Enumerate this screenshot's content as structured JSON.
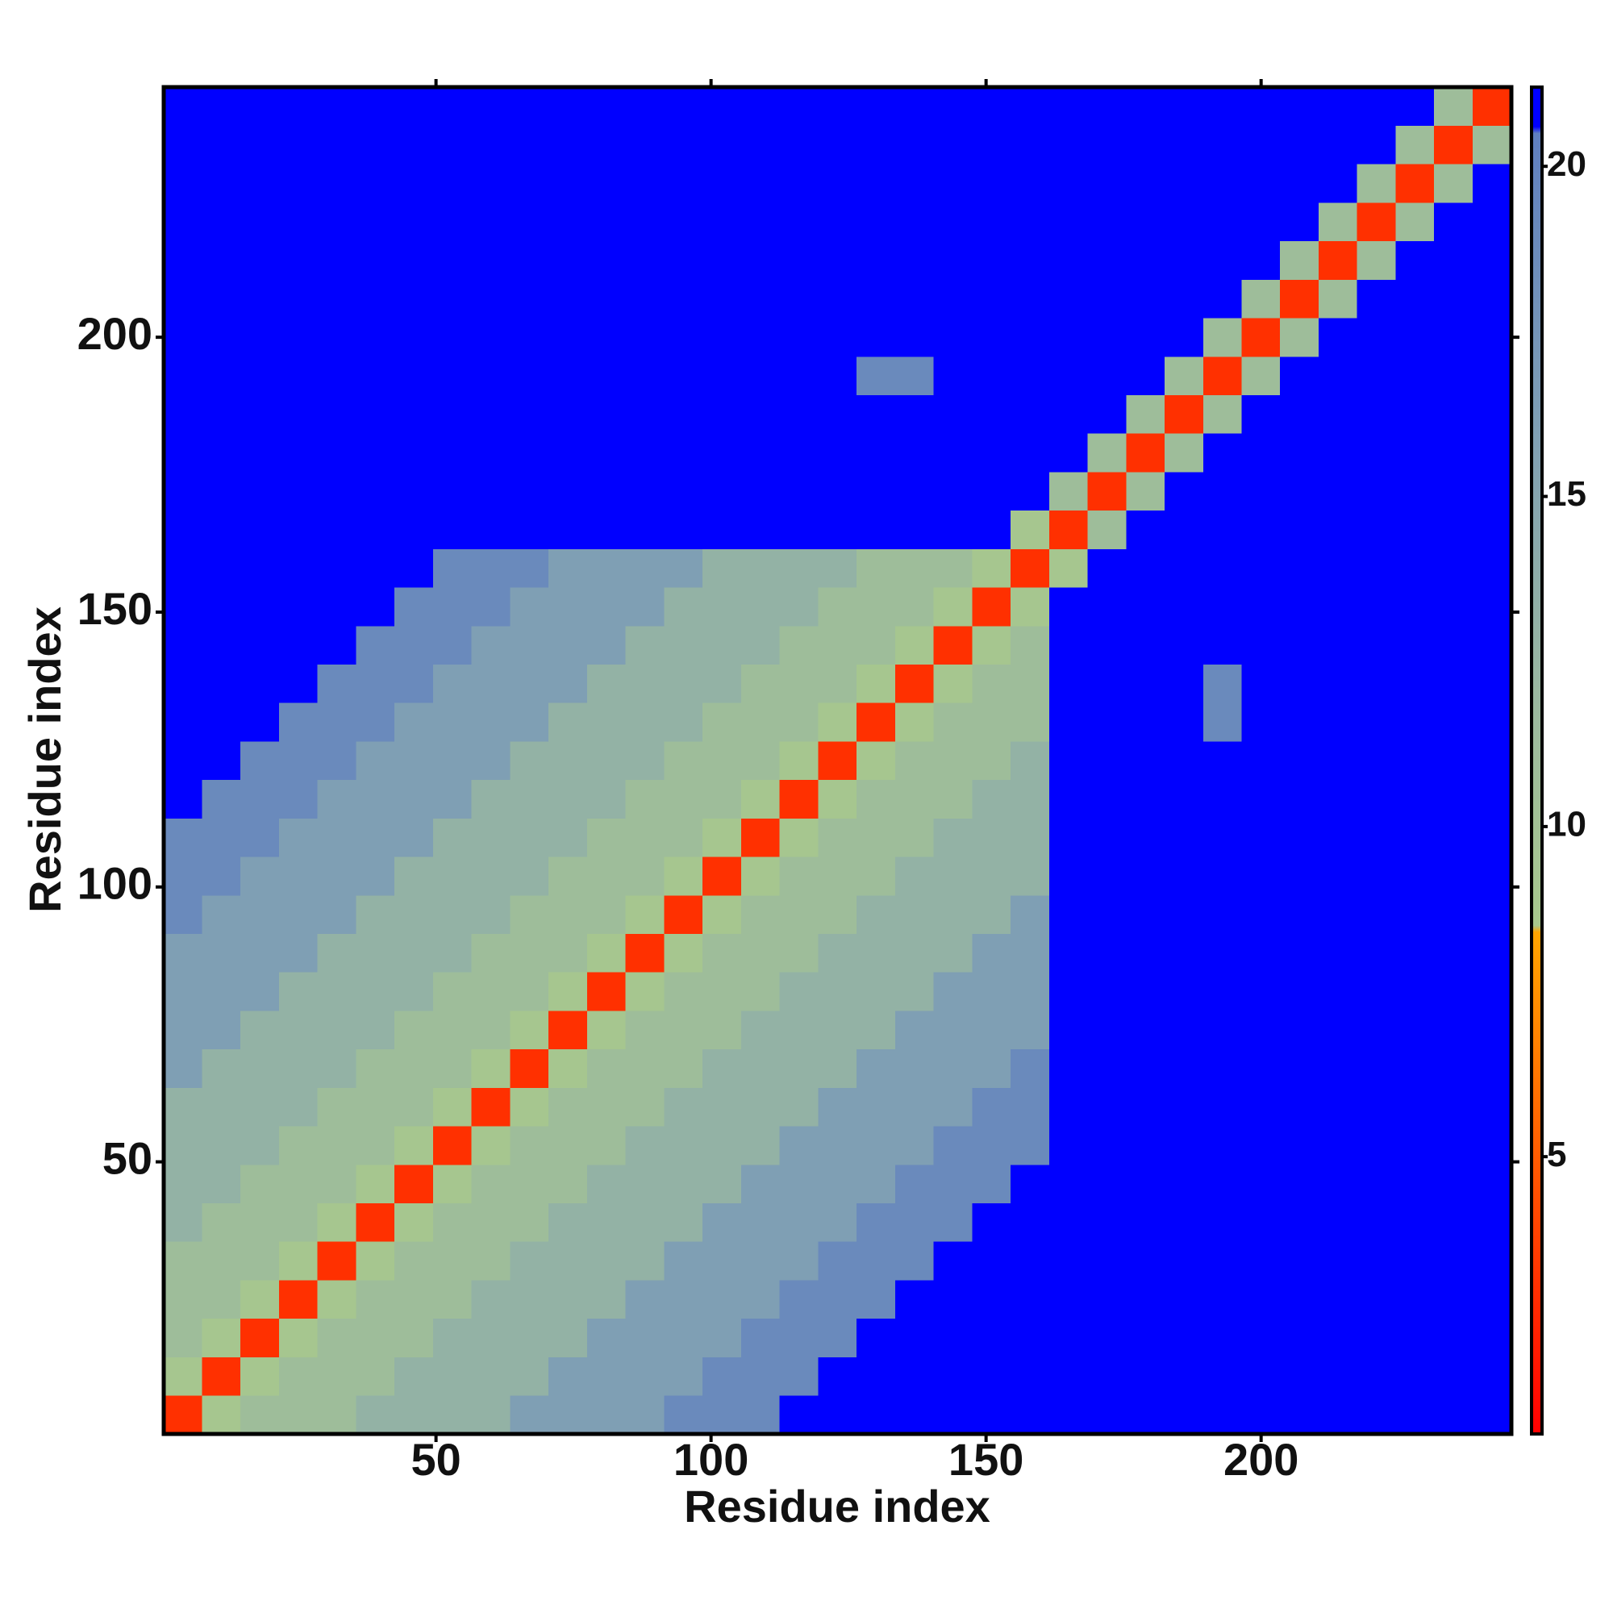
{
  "chart_data": {
    "type": "heatmap",
    "x_label": "Residue index",
    "y_label": "Residue index",
    "xlim": [
      0.5,
      245.5
    ],
    "ylim": [
      0.5,
      245.5
    ],
    "xticks": [
      50,
      100,
      150,
      200
    ],
    "yticks": [
      50,
      100,
      150,
      200
    ],
    "x_edges": [
      0.5,
      7.5,
      14.5,
      21.5,
      28.5,
      35.5,
      42.5,
      49.5,
      56.5,
      63.5,
      70.5,
      77.5,
      84.5,
      91.5,
      98.5,
      105.5,
      112.5,
      119.5,
      126.5,
      133.5,
      140.5,
      147.5,
      154.5,
      161.5,
      168.5,
      175.5,
      182.5,
      189.5,
      196.5,
      203.5,
      210.5,
      217.5,
      224.5,
      231.5,
      238.5,
      245.5
    ],
    "y_edges": [
      0.5,
      7.5,
      14.5,
      21.5,
      28.5,
      35.5,
      42.5,
      49.5,
      56.5,
      63.5,
      70.5,
      77.5,
      84.5,
      91.5,
      98.5,
      105.5,
      112.5,
      119.5,
      126.5,
      133.5,
      140.5,
      147.5,
      154.5,
      161.5,
      168.5,
      175.5,
      182.5,
      189.5,
      196.5,
      203.5,
      210.5,
      217.5,
      224.5,
      231.5,
      238.5,
      245.5
    ],
    "z": [
      [
        3,
        9,
        11,
        11,
        11,
        13,
        13,
        13,
        13,
        16,
        16,
        16,
        16,
        19,
        19,
        19,
        21,
        21,
        21,
        21,
        21,
        21,
        21,
        21,
        21,
        21,
        21,
        21,
        21,
        21,
        21,
        21,
        21,
        21,
        21
      ],
      [
        9,
        3,
        9,
        11,
        11,
        11,
        13,
        13,
        13,
        13,
        16,
        16,
        16,
        16,
        19,
        19,
        19,
        21,
        21,
        21,
        21,
        21,
        21,
        21,
        21,
        21,
        21,
        21,
        21,
        21,
        21,
        21,
        21,
        21,
        21
      ],
      [
        11,
        9,
        3,
        9,
        11,
        11,
        11,
        13,
        13,
        13,
        13,
        16,
        16,
        16,
        16,
        19,
        19,
        19,
        21,
        21,
        21,
        21,
        21,
        21,
        21,
        21,
        21,
        21,
        21,
        21,
        21,
        21,
        21,
        21,
        21
      ],
      [
        11,
        11,
        9,
        3,
        9,
        11,
        11,
        11,
        13,
        13,
        13,
        13,
        16,
        16,
        16,
        16,
        19,
        19,
        19,
        21,
        21,
        21,
        21,
        21,
        21,
        21,
        21,
        21,
        21,
        21,
        21,
        21,
        21,
        21,
        21
      ],
      [
        11,
        11,
        11,
        9,
        3,
        9,
        11,
        11,
        11,
        13,
        13,
        13,
        13,
        16,
        16,
        16,
        16,
        19,
        19,
        19,
        21,
        21,
        21,
        21,
        21,
        21,
        21,
        21,
        21,
        21,
        21,
        21,
        21,
        21,
        21
      ],
      [
        13,
        11,
        11,
        11,
        9,
        3,
        9,
        11,
        11,
        11,
        13,
        13,
        13,
        13,
        16,
        16,
        16,
        16,
        19,
        19,
        19,
        21,
        21,
        21,
        21,
        21,
        21,
        21,
        21,
        21,
        21,
        21,
        21,
        21,
        21
      ],
      [
        13,
        13,
        11,
        11,
        11,
        9,
        3,
        9,
        11,
        11,
        11,
        13,
        13,
        13,
        13,
        16,
        16,
        16,
        16,
        19,
        19,
        19,
        21,
        21,
        21,
        21,
        21,
        21,
        21,
        21,
        21,
        21,
        21,
        21,
        21
      ],
      [
        13,
        13,
        13,
        11,
        11,
        11,
        9,
        3,
        9,
        11,
        11,
        11,
        13,
        13,
        13,
        13,
        16,
        16,
        16,
        16,
        19,
        19,
        19,
        21,
        21,
        21,
        21,
        21,
        21,
        21,
        21,
        21,
        21,
        21,
        21
      ],
      [
        13,
        13,
        13,
        13,
        11,
        11,
        11,
        9,
        3,
        9,
        11,
        11,
        11,
        13,
        13,
        13,
        13,
        16,
        16,
        16,
        16,
        19,
        19,
        21,
        21,
        21,
        21,
        21,
        21,
        21,
        21,
        21,
        21,
        21,
        21
      ],
      [
        16,
        13,
        13,
        13,
        13,
        11,
        11,
        11,
        9,
        3,
        9,
        11,
        11,
        11,
        13,
        13,
        13,
        13,
        16,
        16,
        16,
        16,
        19,
        21,
        21,
        21,
        21,
        21,
        21,
        21,
        21,
        21,
        21,
        21,
        21
      ],
      [
        16,
        16,
        13,
        13,
        13,
        13,
        11,
        11,
        11,
        9,
        3,
        9,
        11,
        11,
        11,
        13,
        13,
        13,
        13,
        16,
        16,
        16,
        16,
        21,
        21,
        21,
        21,
        21,
        21,
        21,
        21,
        21,
        21,
        21,
        21
      ],
      [
        16,
        16,
        16,
        13,
        13,
        13,
        13,
        11,
        11,
        11,
        9,
        3,
        9,
        11,
        11,
        11,
        13,
        13,
        13,
        13,
        16,
        16,
        16,
        21,
        21,
        21,
        21,
        21,
        21,
        21,
        21,
        21,
        21,
        21,
        21
      ],
      [
        16,
        16,
        16,
        16,
        13,
        13,
        13,
        13,
        11,
        11,
        11,
        9,
        3,
        9,
        11,
        11,
        11,
        13,
        13,
        13,
        13,
        16,
        16,
        21,
        21,
        21,
        21,
        21,
        21,
        21,
        21,
        21,
        21,
        21,
        21
      ],
      [
        19,
        16,
        16,
        16,
        16,
        13,
        13,
        13,
        13,
        11,
        11,
        11,
        9,
        3,
        9,
        11,
        11,
        11,
        13,
        13,
        13,
        13,
        16,
        21,
        21,
        21,
        21,
        21,
        21,
        21,
        21,
        21,
        21,
        21,
        21
      ],
      [
        19,
        19,
        16,
        16,
        16,
        16,
        13,
        13,
        13,
        13,
        11,
        11,
        11,
        9,
        3,
        9,
        11,
        11,
        11,
        13,
        13,
        13,
        13,
        21,
        21,
        21,
        21,
        21,
        21,
        21,
        21,
        21,
        21,
        21,
        21
      ],
      [
        19,
        19,
        19,
        16,
        16,
        16,
        16,
        13,
        13,
        13,
        13,
        11,
        11,
        11,
        9,
        3,
        9,
        11,
        11,
        11,
        13,
        13,
        13,
        21,
        21,
        21,
        21,
        21,
        21,
        21,
        21,
        21,
        21,
        21,
        21
      ],
      [
        21,
        19,
        19,
        19,
        16,
        16,
        16,
        16,
        13,
        13,
        13,
        13,
        11,
        11,
        11,
        9,
        3,
        9,
        11,
        11,
        11,
        13,
        13,
        21,
        21,
        21,
        21,
        21,
        21,
        21,
        21,
        21,
        21,
        21,
        21
      ],
      [
        21,
        21,
        19,
        19,
        19,
        16,
        16,
        16,
        16,
        13,
        13,
        13,
        13,
        11,
        11,
        11,
        9,
        3,
        9,
        11,
        11,
        11,
        13,
        21,
        21,
        21,
        21,
        21,
        21,
        21,
        21,
        21,
        21,
        21,
        21
      ],
      [
        21,
        21,
        21,
        19,
        19,
        19,
        16,
        16,
        16,
        16,
        13,
        13,
        13,
        13,
        11,
        11,
        11,
        9,
        3,
        9,
        11,
        11,
        11,
        21,
        21,
        21,
        21,
        19,
        21,
        21,
        21,
        21,
        21,
        21,
        21
      ],
      [
        21,
        21,
        21,
        21,
        19,
        19,
        19,
        16,
        16,
        16,
        16,
        13,
        13,
        13,
        13,
        11,
        11,
        11,
        9,
        3,
        9,
        11,
        11,
        21,
        21,
        21,
        21,
        19,
        21,
        21,
        21,
        21,
        21,
        21,
        21
      ],
      [
        21,
        21,
        21,
        21,
        21,
        19,
        19,
        19,
        16,
        16,
        16,
        16,
        13,
        13,
        13,
        13,
        11,
        11,
        11,
        9,
        3,
        9,
        11,
        21,
        21,
        21,
        21,
        21,
        21,
        21,
        21,
        21,
        21,
        21,
        21
      ],
      [
        21,
        21,
        21,
        21,
        21,
        21,
        19,
        19,
        19,
        16,
        16,
        16,
        16,
        13,
        13,
        13,
        13,
        11,
        11,
        11,
        9,
        3,
        9,
        21,
        21,
        21,
        21,
        21,
        21,
        21,
        21,
        21,
        21,
        21,
        21
      ],
      [
        21,
        21,
        21,
        21,
        21,
        21,
        21,
        19,
        19,
        19,
        16,
        16,
        16,
        16,
        13,
        13,
        13,
        13,
        11,
        11,
        11,
        9,
        3,
        9,
        21,
        21,
        21,
        21,
        21,
        21,
        21,
        21,
        21,
        21,
        21
      ],
      [
        21,
        21,
        21,
        21,
        21,
        21,
        21,
        21,
        21,
        21,
        21,
        21,
        21,
        21,
        21,
        21,
        21,
        21,
        21,
        21,
        21,
        21,
        9,
        3,
        11,
        21,
        21,
        21,
        21,
        21,
        21,
        21,
        21,
        21,
        21
      ],
      [
        21,
        21,
        21,
        21,
        21,
        21,
        21,
        21,
        21,
        21,
        21,
        21,
        21,
        21,
        21,
        21,
        21,
        21,
        21,
        21,
        21,
        21,
        21,
        11,
        3,
        11,
        21,
        21,
        21,
        21,
        21,
        21,
        21,
        21,
        21
      ],
      [
        21,
        21,
        21,
        21,
        21,
        21,
        21,
        21,
        21,
        21,
        21,
        21,
        21,
        21,
        21,
        21,
        21,
        21,
        21,
        21,
        21,
        21,
        21,
        21,
        11,
        3,
        11,
        21,
        21,
        21,
        21,
        21,
        21,
        21,
        21
      ],
      [
        21,
        21,
        21,
        21,
        21,
        21,
        21,
        21,
        21,
        21,
        21,
        21,
        21,
        21,
        21,
        21,
        21,
        21,
        21,
        21,
        21,
        21,
        21,
        21,
        21,
        11,
        3,
        11,
        21,
        21,
        21,
        21,
        21,
        21,
        21
      ],
      [
        21,
        21,
        21,
        21,
        21,
        21,
        21,
        21,
        21,
        21,
        21,
        21,
        21,
        21,
        21,
        21,
        21,
        21,
        19,
        19,
        21,
        21,
        21,
        21,
        21,
        21,
        11,
        3,
        11,
        21,
        21,
        21,
        21,
        21,
        21
      ],
      [
        21,
        21,
        21,
        21,
        21,
        21,
        21,
        21,
        21,
        21,
        21,
        21,
        21,
        21,
        21,
        21,
        21,
        21,
        21,
        21,
        21,
        21,
        21,
        21,
        21,
        21,
        21,
        11,
        3,
        11,
        21,
        21,
        21,
        21,
        21
      ],
      [
        21,
        21,
        21,
        21,
        21,
        21,
        21,
        21,
        21,
        21,
        21,
        21,
        21,
        21,
        21,
        21,
        21,
        21,
        21,
        21,
        21,
        21,
        21,
        21,
        21,
        21,
        21,
        21,
        11,
        3,
        11,
        21,
        21,
        21,
        21
      ],
      [
        21,
        21,
        21,
        21,
        21,
        21,
        21,
        21,
        21,
        21,
        21,
        21,
        21,
        21,
        21,
        21,
        21,
        21,
        21,
        21,
        21,
        21,
        21,
        21,
        21,
        21,
        21,
        21,
        21,
        11,
        3,
        11,
        21,
        21,
        21
      ],
      [
        21,
        21,
        21,
        21,
        21,
        21,
        21,
        21,
        21,
        21,
        21,
        21,
        21,
        21,
        21,
        21,
        21,
        21,
        21,
        21,
        21,
        21,
        21,
        21,
        21,
        21,
        21,
        21,
        21,
        21,
        11,
        3,
        11,
        21,
        21
      ],
      [
        21,
        21,
        21,
        21,
        21,
        21,
        21,
        21,
        21,
        21,
        21,
        21,
        21,
        21,
        21,
        21,
        21,
        21,
        21,
        21,
        21,
        21,
        21,
        21,
        21,
        21,
        21,
        21,
        21,
        21,
        21,
        11,
        3,
        11,
        21
      ],
      [
        21,
        21,
        21,
        21,
        21,
        21,
        21,
        21,
        21,
        21,
        21,
        21,
        21,
        21,
        21,
        21,
        21,
        21,
        21,
        21,
        21,
        21,
        21,
        21,
        21,
        21,
        21,
        21,
        21,
        21,
        21,
        21,
        11,
        3,
        11
      ],
      [
        21,
        21,
        21,
        21,
        21,
        21,
        21,
        21,
        21,
        21,
        21,
        21,
        21,
        21,
        21,
        21,
        21,
        21,
        21,
        21,
        21,
        21,
        21,
        21,
        21,
        21,
        21,
        21,
        21,
        21,
        21,
        21,
        21,
        11,
        3
      ]
    ],
    "colorbar": {
      "lim": [
        0.8,
        21.2
      ],
      "ticks": [
        5,
        10,
        15,
        20
      ],
      "stops": [
        {
          "value": 0.8,
          "color": "#ff0000"
        },
        {
          "value": 4.5,
          "color": "#ff5000"
        },
        {
          "value": 8.4,
          "color": "#ffa500"
        },
        {
          "value": 8.5,
          "color": "#a8c88c"
        },
        {
          "value": 12,
          "color": "#9ab8a0"
        },
        {
          "value": 16,
          "color": "#7f9fb4"
        },
        {
          "value": 20.5,
          "color": "#5f7fc0"
        },
        {
          "value": 20.6,
          "color": "#0000ff"
        },
        {
          "value": 21.2,
          "color": "#0000ff"
        }
      ]
    }
  }
}
